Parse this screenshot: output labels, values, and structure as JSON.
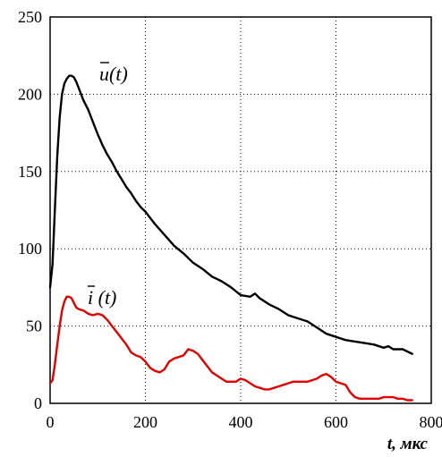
{
  "chart_data": {
    "type": "line",
    "title": "",
    "xlabel": "t, мкс",
    "ylabel": "",
    "xlim": [
      0,
      800
    ],
    "ylim": [
      0,
      250
    ],
    "xticks": [
      0,
      200,
      400,
      600,
      800
    ],
    "yticks": [
      0,
      50,
      100,
      150,
      200,
      250
    ],
    "grid": true,
    "series": [
      {
        "name": "u(t)",
        "color": "#000000",
        "x": [
          0,
          5,
          10,
          15,
          20,
          25,
          30,
          35,
          40,
          45,
          50,
          55,
          60,
          70,
          80,
          90,
          100,
          110,
          120,
          130,
          140,
          150,
          160,
          170,
          180,
          190,
          200,
          220,
          240,
          260,
          280,
          300,
          320,
          340,
          360,
          380,
          400,
          420,
          430,
          440,
          460,
          480,
          500,
          520,
          540,
          560,
          580,
          600,
          620,
          640,
          660,
          680,
          700,
          710,
          720,
          740,
          760
        ],
        "values": [
          75,
          90,
          125,
          160,
          185,
          200,
          207,
          210,
          212,
          212,
          211,
          208,
          204,
          196,
          190,
          182,
          174,
          167,
          161,
          156,
          150,
          145,
          140,
          136,
          131,
          127,
          124,
          116,
          109,
          102,
          97,
          91,
          87,
          82,
          79,
          75,
          70,
          69,
          71,
          68,
          64,
          61,
          57,
          55,
          53,
          49,
          45,
          43,
          41,
          40,
          39,
          38,
          36,
          37,
          35,
          35,
          32
        ]
      },
      {
        "name": "i(t)",
        "color": "#e00000",
        "x": [
          0,
          5,
          10,
          15,
          20,
          25,
          30,
          35,
          40,
          45,
          50,
          55,
          60,
          70,
          80,
          90,
          100,
          110,
          120,
          130,
          140,
          150,
          160,
          170,
          180,
          190,
          200,
          210,
          220,
          230,
          240,
          250,
          260,
          270,
          280,
          290,
          300,
          310,
          320,
          330,
          340,
          350,
          360,
          370,
          380,
          390,
          400,
          410,
          420,
          430,
          440,
          450,
          460,
          470,
          480,
          490,
          500,
          510,
          520,
          530,
          540,
          550,
          560,
          570,
          580,
          590,
          600,
          610,
          620,
          630,
          640,
          650,
          660,
          670,
          680,
          690,
          700,
          710,
          720,
          730,
          740,
          750,
          760
        ],
        "values": [
          13,
          15,
          25,
          38,
          50,
          60,
          66,
          69,
          69,
          68,
          65,
          62,
          61,
          60,
          58,
          57,
          58,
          57,
          54,
          50,
          46,
          42,
          38,
          33,
          31,
          30,
          27,
          23,
          21,
          20,
          22,
          27,
          29,
          30,
          31,
          35,
          34,
          32,
          28,
          24,
          20,
          18,
          16,
          14,
          14,
          14,
          16,
          15,
          13,
          11,
          10,
          9,
          9,
          10,
          11,
          12,
          13,
          14,
          14,
          14,
          14,
          15,
          16,
          18,
          19,
          17,
          14,
          13,
          12,
          7,
          4,
          3,
          3,
          3,
          3,
          3,
          4,
          4,
          4,
          3,
          3,
          2,
          2
        ]
      }
    ]
  }
}
